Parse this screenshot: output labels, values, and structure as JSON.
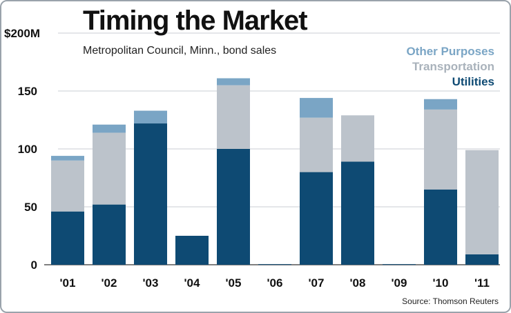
{
  "chart_data": {
    "type": "bar",
    "stacked": true,
    "title": "Timing the Market",
    "subtitle": "Metropolitan Council, Minn., bond sales",
    "source": "Source: Thomson Reuters",
    "y_top_label": "$200M",
    "ylim": [
      0,
      200
    ],
    "yticks": [
      0,
      50,
      100,
      150
    ],
    "grid": true,
    "legend_position": "top-right",
    "categories": [
      "'01",
      "'02",
      "'03",
      "'04",
      "'05",
      "'06",
      "'07",
      "'08",
      "'09",
      "'10",
      "'11"
    ],
    "series": [
      {
        "name": "Utilities",
        "color": "#0e4a73",
        "values": [
          46,
          52,
          122,
          25,
          100,
          0.5,
          80,
          89,
          0.5,
          65,
          9
        ]
      },
      {
        "name": "Transportation",
        "color": "#bcc3cb",
        "values": [
          44,
          62,
          0,
          0,
          55,
          0,
          47,
          40,
          0,
          69,
          90
        ]
      },
      {
        "name": "Other Purposes",
        "color": "#7aa5c5",
        "values": [
          4,
          7,
          11,
          0,
          6,
          0,
          17,
          0,
          0,
          9,
          0
        ]
      }
    ]
  }
}
